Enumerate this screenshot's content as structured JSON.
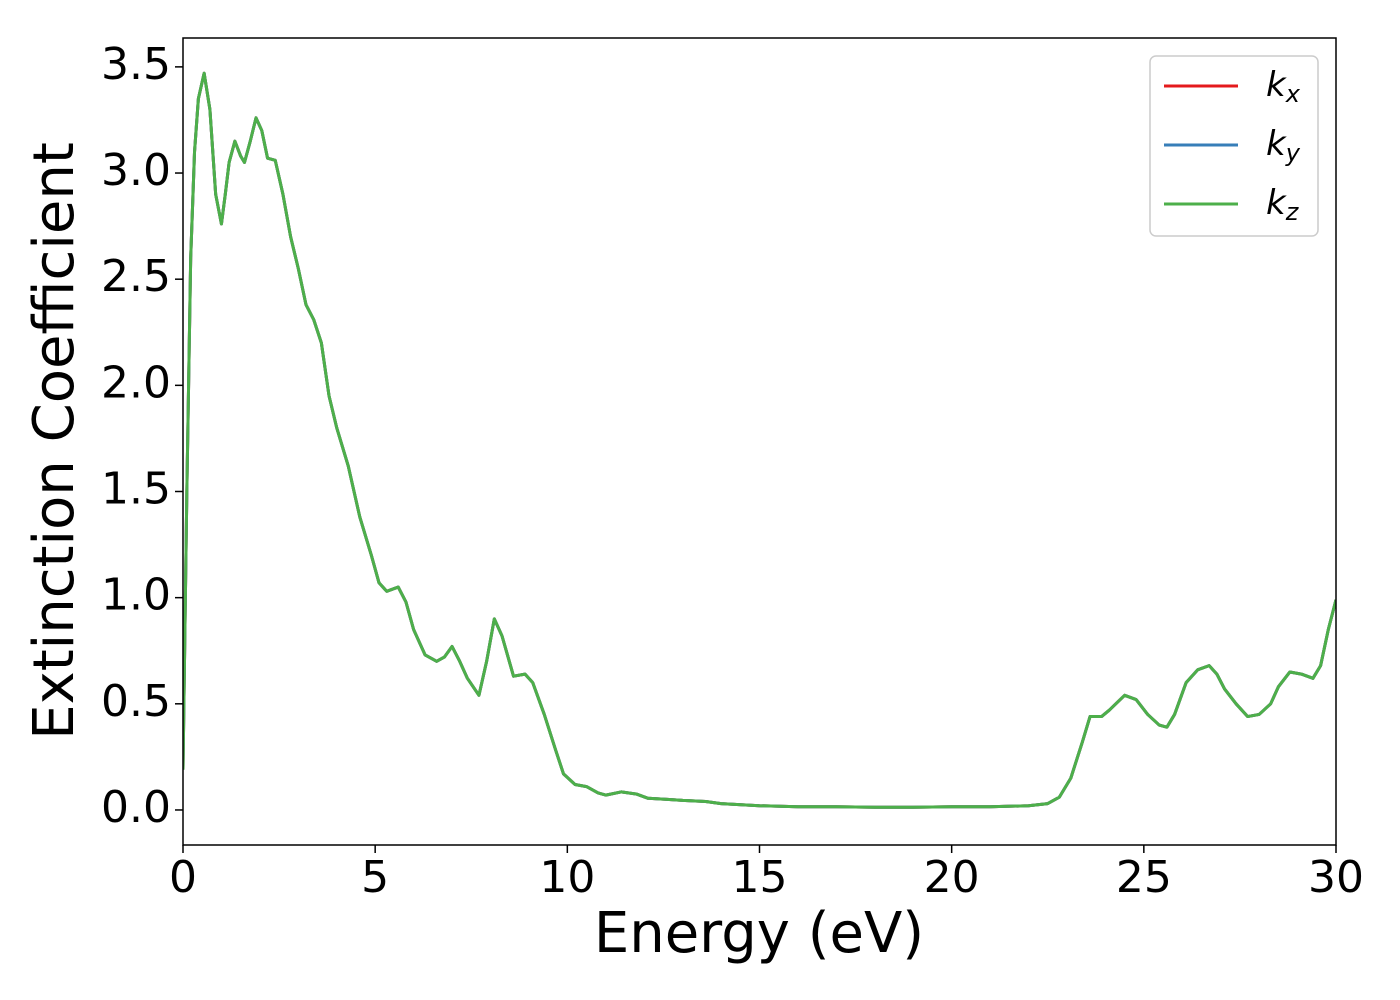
{
  "chart_data": {
    "type": "line",
    "xlabel": "Energy (eV)",
    "ylabel": "Extinction Coefficient",
    "x": [
      0,
      0.1,
      0.2,
      0.3,
      0.4,
      0.55,
      0.7,
      0.85,
      1.0,
      1.1,
      1.2,
      1.35,
      1.5,
      1.6,
      1.75,
      1.9,
      2.05,
      2.2,
      2.4,
      2.6,
      2.8,
      3.0,
      3.2,
      3.4,
      3.6,
      3.8,
      4.0,
      4.3,
      4.6,
      4.9,
      5.1,
      5.3,
      5.6,
      5.8,
      6.0,
      6.3,
      6.6,
      6.8,
      7.0,
      7.2,
      7.4,
      7.7,
      7.9,
      8.1,
      8.3,
      8.6,
      8.9,
      9.1,
      9.4,
      9.7,
      9.9,
      10.2,
      10.5,
      10.8,
      11.0,
      11.4,
      11.8,
      12.1,
      12.6,
      13.0,
      13.6,
      14.0,
      15.0,
      16.0,
      17.0,
      18.0,
      19.0,
      20.0,
      21.0,
      22.0,
      22.5,
      22.8,
      23.1,
      23.4,
      23.6,
      23.9,
      24.1,
      24.5,
      24.8,
      25.1,
      25.4,
      25.6,
      25.8,
      26.1,
      26.4,
      26.7,
      26.9,
      27.1,
      27.4,
      27.7,
      28.0,
      28.3,
      28.5,
      28.8,
      29.1,
      29.4,
      29.6,
      29.8,
      30
    ],
    "series": [
      {
        "name": "kx",
        "color": "#e41a1c",
        "values": [
          0.19,
          1.5,
          2.6,
          3.1,
          3.35,
          3.47,
          3.3,
          2.9,
          2.76,
          2.9,
          3.05,
          3.15,
          3.08,
          3.05,
          3.15,
          3.26,
          3.2,
          3.07,
          3.06,
          2.9,
          2.7,
          2.55,
          2.38,
          2.31,
          2.2,
          1.95,
          1.8,
          1.62,
          1.38,
          1.2,
          1.07,
          1.03,
          1.05,
          0.98,
          0.85,
          0.73,
          0.7,
          0.72,
          0.77,
          0.7,
          0.62,
          0.54,
          0.7,
          0.9,
          0.82,
          0.63,
          0.64,
          0.6,
          0.45,
          0.28,
          0.17,
          0.12,
          0.11,
          0.08,
          0.07,
          0.085,
          0.075,
          0.055,
          0.05,
          0.045,
          0.04,
          0.03,
          0.02,
          0.015,
          0.015,
          0.013,
          0.013,
          0.015,
          0.015,
          0.02,
          0.03,
          0.06,
          0.15,
          0.32,
          0.44,
          0.44,
          0.47,
          0.54,
          0.52,
          0.45,
          0.4,
          0.39,
          0.45,
          0.6,
          0.66,
          0.68,
          0.64,
          0.57,
          0.5,
          0.44,
          0.45,
          0.5,
          0.58,
          0.65,
          0.64,
          0.62,
          0.68,
          0.85,
          0.99
        ]
      },
      {
        "name": "ky",
        "color": "#377eb8",
        "values": [
          0.19,
          1.5,
          2.6,
          3.1,
          3.35,
          3.47,
          3.3,
          2.9,
          2.76,
          2.9,
          3.05,
          3.15,
          3.08,
          3.05,
          3.15,
          3.26,
          3.2,
          3.07,
          3.06,
          2.9,
          2.7,
          2.55,
          2.38,
          2.31,
          2.2,
          1.95,
          1.8,
          1.62,
          1.38,
          1.2,
          1.07,
          1.03,
          1.05,
          0.98,
          0.85,
          0.73,
          0.7,
          0.72,
          0.77,
          0.7,
          0.62,
          0.54,
          0.7,
          0.9,
          0.82,
          0.63,
          0.64,
          0.6,
          0.45,
          0.28,
          0.17,
          0.12,
          0.11,
          0.08,
          0.07,
          0.085,
          0.075,
          0.055,
          0.05,
          0.045,
          0.04,
          0.03,
          0.02,
          0.015,
          0.015,
          0.013,
          0.013,
          0.015,
          0.015,
          0.02,
          0.03,
          0.06,
          0.15,
          0.32,
          0.44,
          0.44,
          0.47,
          0.54,
          0.52,
          0.45,
          0.4,
          0.39,
          0.45,
          0.6,
          0.66,
          0.68,
          0.64,
          0.57,
          0.5,
          0.44,
          0.45,
          0.5,
          0.58,
          0.65,
          0.64,
          0.62,
          0.68,
          0.85,
          0.99
        ]
      },
      {
        "name": "kz",
        "color": "#4daf4a",
        "values": [
          0.19,
          1.5,
          2.6,
          3.1,
          3.35,
          3.47,
          3.3,
          2.9,
          2.76,
          2.9,
          3.05,
          3.15,
          3.08,
          3.05,
          3.15,
          3.26,
          3.2,
          3.07,
          3.06,
          2.9,
          2.7,
          2.55,
          2.38,
          2.31,
          2.2,
          1.95,
          1.8,
          1.62,
          1.38,
          1.2,
          1.07,
          1.03,
          1.05,
          0.98,
          0.85,
          0.73,
          0.7,
          0.72,
          0.77,
          0.7,
          0.62,
          0.54,
          0.7,
          0.9,
          0.82,
          0.63,
          0.64,
          0.6,
          0.45,
          0.28,
          0.17,
          0.12,
          0.11,
          0.08,
          0.07,
          0.085,
          0.075,
          0.055,
          0.05,
          0.045,
          0.04,
          0.03,
          0.02,
          0.015,
          0.015,
          0.013,
          0.013,
          0.015,
          0.015,
          0.02,
          0.03,
          0.06,
          0.15,
          0.32,
          0.44,
          0.44,
          0.47,
          0.54,
          0.52,
          0.45,
          0.4,
          0.39,
          0.45,
          0.6,
          0.66,
          0.68,
          0.64,
          0.57,
          0.5,
          0.44,
          0.45,
          0.5,
          0.58,
          0.65,
          0.64,
          0.62,
          0.68,
          0.85,
          0.99
        ]
      }
    ],
    "xlim": [
      0,
      30
    ],
    "xticks": [
      0,
      5,
      10,
      15,
      20,
      25,
      30
    ],
    "ylim": [
      -0.165,
      3.636
    ],
    "yticks": [
      {
        "value": 0,
        "label": "0.0"
      },
      0.5,
      {
        "value": 1,
        "label": "1.0"
      },
      1.5,
      {
        "value": 2,
        "label": "2.0"
      },
      2.5,
      {
        "value": 3,
        "label": "3.0"
      },
      3.5
    ],
    "grid": false,
    "legend": "upper right"
  }
}
